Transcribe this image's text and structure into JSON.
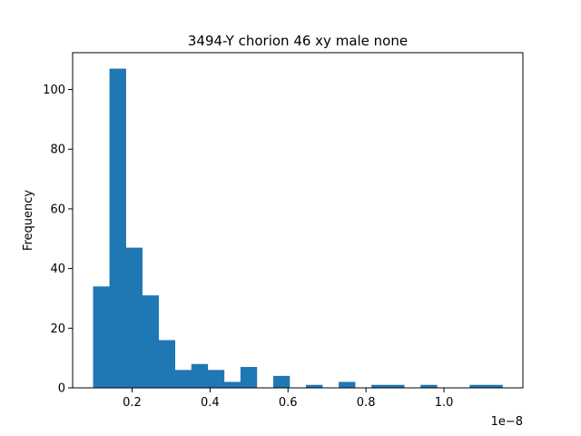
{
  "chart_data": {
    "type": "bar",
    "title": "3494-Y chorion 46 xy male none",
    "xlabel": "",
    "ylabel": "Frequency",
    "x_offset_label": "1e−8",
    "bin_edges": [
      0.1,
      0.142,
      0.184,
      0.226,
      0.268,
      0.31,
      0.352,
      0.394,
      0.436,
      0.478,
      0.52,
      0.562,
      0.604,
      0.646,
      0.688,
      0.73,
      0.772,
      0.814,
      0.856,
      0.898,
      0.94,
      0.982,
      1.024,
      1.066,
      1.108,
      1.15
    ],
    "counts": [
      34,
      107,
      47,
      31,
      16,
      6,
      8,
      6,
      2,
      7,
      0,
      4,
      0,
      1,
      0,
      2,
      0,
      1,
      1,
      0,
      1,
      0,
      0,
      1,
      1
    ],
    "xlim": [
      0.0475,
      1.2025
    ],
    "ylim": [
      0,
      112.35
    ],
    "x_ticks": [
      0.2,
      0.4,
      0.6,
      0.8,
      1.0
    ],
    "x_tick_labels": [
      "0.2",
      "0.4",
      "0.6",
      "0.8",
      "1.0"
    ],
    "y_ticks": [
      0,
      20,
      40,
      60,
      80,
      100
    ],
    "y_tick_labels": [
      "0",
      "20",
      "40",
      "60",
      "80",
      "100"
    ],
    "bar_color": "#1f77b4",
    "grid": false,
    "legend": "none"
  }
}
